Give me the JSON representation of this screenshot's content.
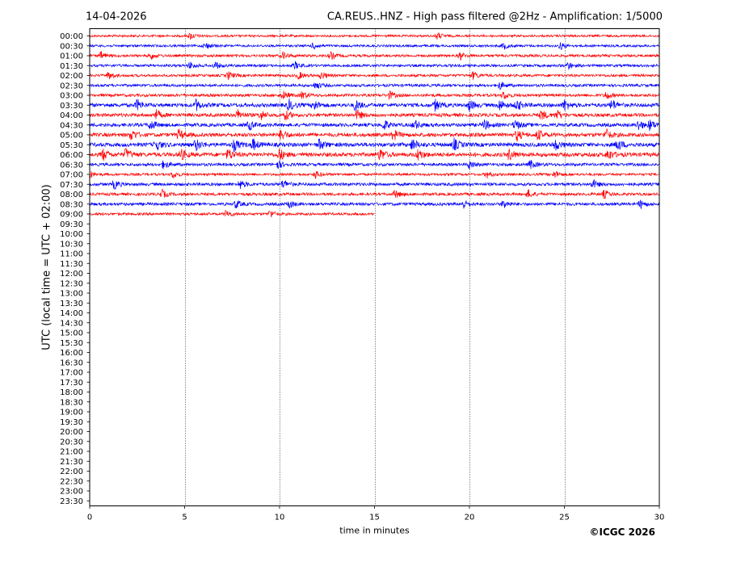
{
  "header": {
    "date": "14-04-2026",
    "title": "CA.REUS..HNZ - High pass filtered @2Hz - Amplification: 1/5000"
  },
  "copyright": "©ICGC 2026",
  "colors": {
    "red": "#ff0000",
    "blue": "#0000ff",
    "grid": "#000000"
  },
  "chart_data": {
    "type": "line",
    "title": "CA.REUS..HNZ - High pass filtered @2Hz - Amplification: 1/5000",
    "xlabel": "time in minutes",
    "ylabel": "UTC (local time = UTC + 02:00)",
    "xlim": [
      0,
      30
    ],
    "xticks": [
      "0",
      "5",
      "10",
      "15",
      "20",
      "25",
      "30"
    ],
    "grid": "vertical dotted lines at 5, 10, 15, 20, 25",
    "row_labels": [
      "00:00",
      "00:30",
      "01:00",
      "01:30",
      "02:00",
      "02:30",
      "03:00",
      "03:30",
      "04:00",
      "04:30",
      "05:00",
      "05:30",
      "06:00",
      "06:30",
      "07:00",
      "07:30",
      "08:00",
      "08:30",
      "09:00",
      "09:30",
      "10:00",
      "10:30",
      "11:00",
      "11:30",
      "12:00",
      "12:30",
      "13:00",
      "13:30",
      "14:00",
      "14:30",
      "15:00",
      "15:30",
      "16:00",
      "16:30",
      "17:00",
      "17:30",
      "18:00",
      "18:30",
      "19:00",
      "19:30",
      "20:00",
      "20:30",
      "21:00",
      "21:30",
      "22:00",
      "22:30",
      "23:00",
      "23:30"
    ],
    "traces": [
      {
        "row": "00:00",
        "color": "red",
        "x_end": 30,
        "level": 0.25,
        "events": [
          5.3,
          18.3
        ]
      },
      {
        "row": "00:30",
        "color": "blue",
        "x_end": 30,
        "level": 0.3,
        "events": [
          6.1,
          11.8,
          21.8,
          24.8
        ]
      },
      {
        "row": "01:00",
        "color": "red",
        "x_end": 30,
        "level": 0.4,
        "events": [
          0.6,
          3.2,
          10.2,
          12.7,
          19.5
        ]
      },
      {
        "row": "01:30",
        "color": "blue",
        "x_end": 30,
        "level": 0.4,
        "events": [
          5.3,
          6.6,
          10.8,
          25.2
        ]
      },
      {
        "row": "02:00",
        "color": "red",
        "x_end": 30,
        "level": 0.4,
        "events": [
          1.0,
          7.3,
          11.0,
          12.2,
          20.2
        ]
      },
      {
        "row": "02:30",
        "color": "blue",
        "x_end": 30,
        "level": 0.45,
        "events": [
          11.9,
          21.6
        ]
      },
      {
        "row": "03:00",
        "color": "red",
        "x_end": 30,
        "level": 0.5,
        "events": [
          10.2,
          11.2,
          15.8,
          21.8,
          27.2
        ]
      },
      {
        "row": "03:30",
        "color": "blue",
        "x_end": 30,
        "level": 0.9,
        "events": [
          2.5,
          5.6,
          10.5,
          11.8,
          14.0,
          18.2,
          20.0,
          21.6,
          22.5,
          25.0,
          27.5
        ]
      },
      {
        "row": "04:00",
        "color": "red",
        "x_end": 30,
        "level": 0.75,
        "events": [
          3.5,
          7.8,
          9.0,
          10.3,
          14.1,
          23.8,
          24.6
        ]
      },
      {
        "row": "04:30",
        "color": "blue",
        "x_end": 30,
        "level": 0.8,
        "events": [
          3.2,
          8.4,
          15.5,
          17.1,
          20.8,
          22.4,
          28.9,
          29.5
        ]
      },
      {
        "row": "05:00",
        "color": "red",
        "x_end": 30,
        "level": 0.9,
        "events": [
          2.2,
          4.7,
          10.1,
          16.0,
          22.5,
          23.6,
          27.2
        ]
      },
      {
        "row": "05:30",
        "color": "blue",
        "x_end": 30,
        "level": 1.0,
        "events": [
          3.5,
          5.6,
          7.6,
          8.6,
          12.1,
          17.0,
          19.2,
          24.5,
          27.8
        ]
      },
      {
        "row": "06:00",
        "color": "red",
        "x_end": 30,
        "level": 1.0,
        "events": [
          0.7,
          1.9,
          4.8,
          7.3,
          10.0,
          15.3,
          17.3,
          22.1,
          27.3
        ]
      },
      {
        "row": "06:30",
        "color": "blue",
        "x_end": 30,
        "level": 0.55,
        "events": [
          3.9,
          9.9,
          20.0,
          23.2
        ]
      },
      {
        "row": "07:00",
        "color": "red",
        "x_end": 30,
        "level": 0.35,
        "events": [
          0.0,
          4.4,
          11.9,
          20.9,
          24.5
        ]
      },
      {
        "row": "07:30",
        "color": "blue",
        "x_end": 30,
        "level": 0.6,
        "events": [
          1.3,
          7.9,
          10.2,
          26.5
        ]
      },
      {
        "row": "08:00",
        "color": "red",
        "x_end": 30,
        "level": 0.5,
        "events": [
          3.8,
          16.1,
          23.1,
          27.1
        ]
      },
      {
        "row": "08:30",
        "color": "blue",
        "x_end": 30,
        "level": 0.55,
        "events": [
          7.7,
          10.5,
          19.7,
          21.8,
          29.0
        ]
      },
      {
        "row": "09:00",
        "color": "red",
        "x_end": 15.0,
        "level": 0.4,
        "events": [
          7.2,
          9.5
        ]
      }
    ]
  }
}
